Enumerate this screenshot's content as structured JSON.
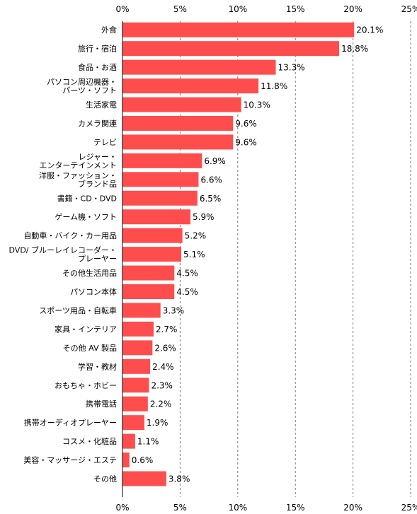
{
  "chart_data": {
    "type": "bar",
    "orientation": "horizontal",
    "title": "",
    "xlabel": "",
    "ylabel": "",
    "xlim": [
      0,
      25
    ],
    "ticks": [
      "0%",
      "5%",
      "10%",
      "15%",
      "20%",
      "25%"
    ],
    "tick_values": [
      0,
      5,
      10,
      15,
      20,
      25
    ],
    "grid": true,
    "bar_color": "#ff4d4d",
    "categories": [
      [
        "外食"
      ],
      [
        "旅行・宿泊"
      ],
      [
        "食品・お酒"
      ],
      [
        "パソコン周辺機器・",
        "パーツ・ソフト"
      ],
      [
        "生活家電"
      ],
      [
        "カメラ関連"
      ],
      [
        "テレビ"
      ],
      [
        "レジャー・",
        "エンターテインメント"
      ],
      [
        "洋服・ファッション・",
        "ブランド品"
      ],
      [
        "書籍・CD・DVD"
      ],
      [
        "ゲーム機・ソフト"
      ],
      [
        "自動車・バイク・カー用品"
      ],
      [
        "DVD/ ブルーレイレコーダー・",
        "プレーヤー"
      ],
      [
        "その他生活用品"
      ],
      [
        "パソコン本体"
      ],
      [
        "スポーツ用品・自転車"
      ],
      [
        "家具・インテリア"
      ],
      [
        "その他 AV 製品"
      ],
      [
        "学習・教材"
      ],
      [
        "おもちゃ・ホビー"
      ],
      [
        "携帯電話"
      ],
      [
        "携帯オーディオプレーヤー"
      ],
      [
        "コスメ・化粧品"
      ],
      [
        "美容・マッサージ・エステ"
      ],
      [
        "その他"
      ]
    ],
    "values": [
      20.1,
      18.8,
      13.3,
      11.8,
      10.3,
      9.6,
      9.6,
      6.9,
      6.6,
      6.5,
      5.9,
      5.2,
      5.1,
      4.5,
      4.5,
      3.3,
      2.7,
      2.6,
      2.4,
      2.3,
      2.2,
      1.9,
      1.1,
      0.6,
      3.8
    ],
    "value_labels": [
      "20.1%",
      "18.8%",
      "13.3%",
      "11.8%",
      "10.3%",
      "9.6%",
      "9.6%",
      "6.9%",
      "6.6%",
      "6.5%",
      "5.9%",
      "5.2%",
      "5.1%",
      "4.5%",
      "4.5%",
      "3.3%",
      "2.7%",
      "2.6%",
      "2.4%",
      "2.3%",
      "2.2%",
      "1.9%",
      "1.1%",
      "0.6%",
      "3.8%"
    ]
  }
}
